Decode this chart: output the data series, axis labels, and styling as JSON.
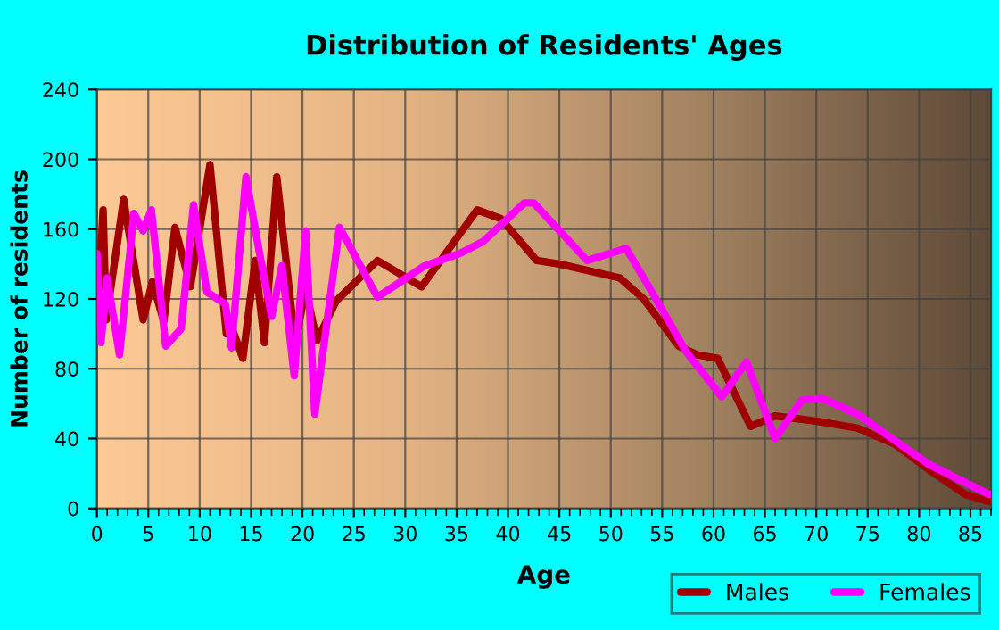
{
  "chart_data": {
    "type": "line",
    "title": "Distribution of Residents' Ages",
    "xlabel": "Age",
    "ylabel": "Number of residents",
    "xlim": [
      0,
      87
    ],
    "ylim": [
      0,
      240
    ],
    "xticks": [
      0,
      5,
      10,
      15,
      20,
      25,
      30,
      35,
      40,
      45,
      50,
      55,
      60,
      65,
      70,
      75,
      80,
      85
    ],
    "yticks": [
      0,
      40,
      80,
      120,
      160,
      200,
      240
    ],
    "grid": true,
    "legend": "bottom right",
    "marker": "none",
    "line_style": "solid",
    "series": [
      {
        "name": "Males",
        "color": "#a00000",
        "x": [
          0,
          0.6,
          0.9,
          2.6,
          4.5,
          5.4,
          6.5,
          7.6,
          9.1,
          11,
          12.6,
          13.1,
          14.2,
          15.4,
          16.3,
          17.5,
          19.3,
          20.3,
          21.4,
          23.3,
          27.3,
          31.6,
          37,
          39.3,
          42.8,
          45,
          50.9,
          53.2,
          56.6,
          58.4,
          60.4,
          63.6,
          66,
          70,
          74,
          77.6,
          81,
          84.5,
          86.8
        ],
        "values": [
          103,
          171,
          108,
          177,
          108,
          130,
          107,
          161,
          127,
          197,
          100,
          104,
          86,
          142,
          95,
          190,
          94,
          126,
          96,
          119,
          142,
          127,
          171,
          166,
          142,
          140,
          132,
          120,
          93,
          88,
          86,
          47,
          53,
          50,
          46,
          37,
          22,
          8,
          4
        ]
      },
      {
        "name": "Females",
        "color": "#ff00ff",
        "x": [
          0,
          0.4,
          1,
          2.2,
          3.6,
          4.5,
          5.3,
          6.7,
          8.2,
          9.4,
          10.7,
          12.5,
          13.1,
          14.5,
          15.8,
          17,
          18,
          19.2,
          20.3,
          21.2,
          23.6,
          27.3,
          31.9,
          35.3,
          37.6,
          41.6,
          42.5,
          47.7,
          51.5,
          54.4,
          57.3,
          60.8,
          63.2,
          66,
          68.6,
          70.6,
          74,
          77.6,
          81,
          86.8
        ],
        "values": [
          146,
          95,
          132,
          88,
          169,
          159,
          171,
          93,
          103,
          174,
          124,
          117,
          92,
          190,
          147,
          110,
          139,
          76,
          159,
          54,
          161,
          121,
          139,
          146,
          153,
          175,
          175,
          142,
          149,
          120,
          90,
          64,
          84,
          40,
          62,
          63,
          54,
          39,
          25,
          8
        ]
      }
    ]
  }
}
